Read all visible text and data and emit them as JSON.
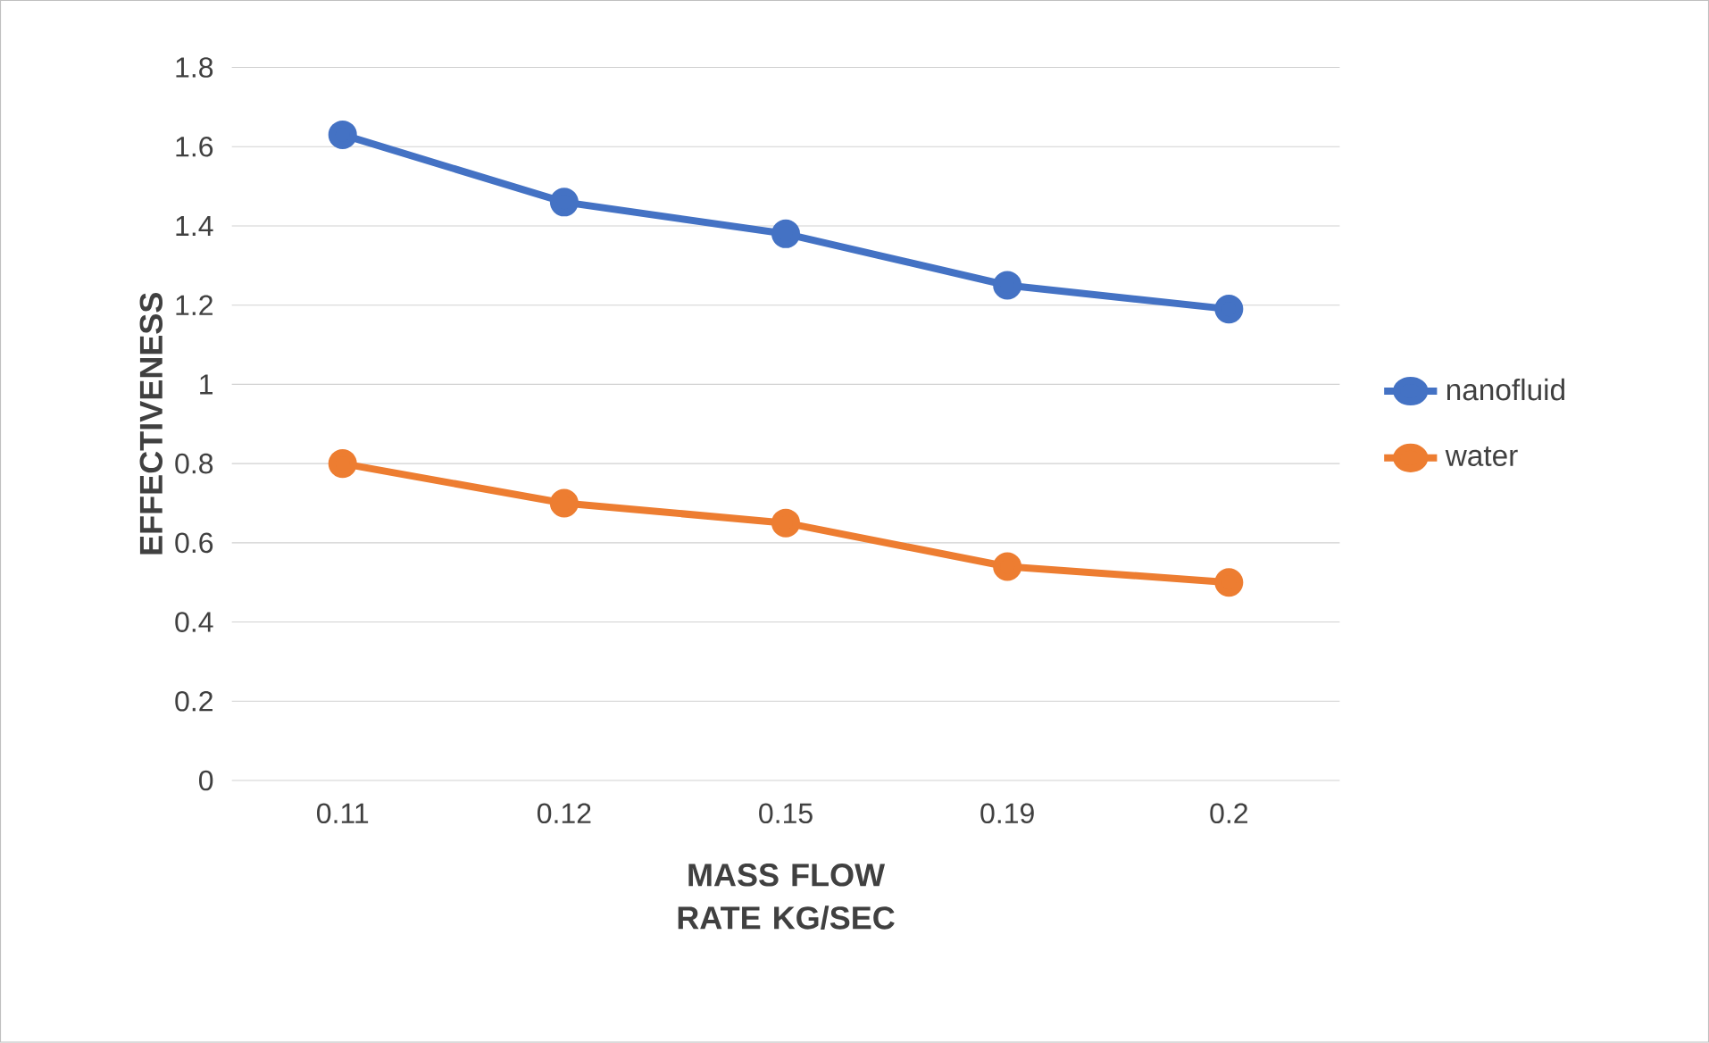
{
  "chart_data": {
    "type": "line",
    "xlabel": "MASS FLOW RATE KG/SEC",
    "ylabel": "EFFECTIVENESS",
    "categories": [
      "0.11",
      "0.12",
      "0.15",
      "0.19",
      "0.2"
    ],
    "series": [
      {
        "name": "nanofluid",
        "color": "#4472c4",
        "values": [
          1.63,
          1.46,
          1.38,
          1.25,
          1.19
        ]
      },
      {
        "name": "water",
        "color": "#ed7d31",
        "values": [
          0.8,
          0.7,
          0.65,
          0.54,
          0.5
        ]
      }
    ],
    "ylim": [
      0,
      1.8
    ],
    "yticks": [
      0,
      0.2,
      0.4,
      0.6,
      0.8,
      1,
      1.2,
      1.4,
      1.6,
      1.8
    ],
    "grid": "y",
    "legend": "right",
    "marker": "circle",
    "line_style": "solid"
  }
}
